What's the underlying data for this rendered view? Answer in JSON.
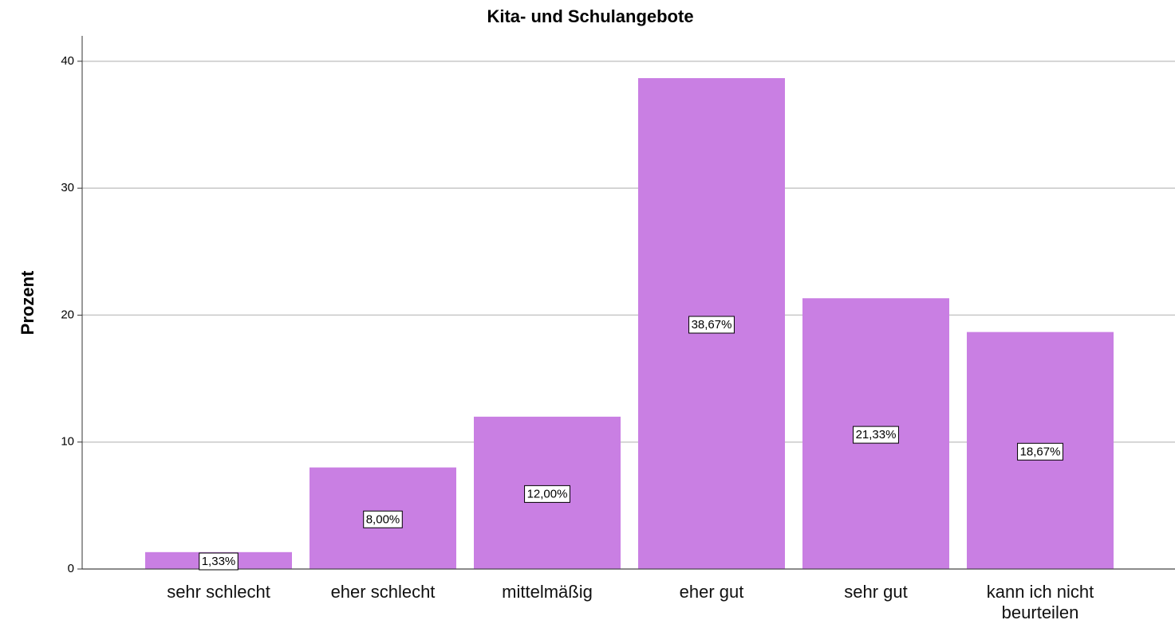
{
  "chart_data": {
    "type": "bar",
    "title": "Kita- und Schulangebote",
    "y_label": "Prozent",
    "categories": [
      "sehr schlecht",
      "eher schlecht",
      "mittelmäßig",
      "eher gut",
      "sehr gut",
      "kann ich nicht beurteilen"
    ],
    "values": [
      1.33,
      8,
      12,
      38.67,
      21.33,
      18.67
    ],
    "value_labels": [
      "1,33%",
      "8,00%",
      "12,00%",
      "38,67%",
      "21,33%",
      "18,67%"
    ],
    "color": "#c97fe3",
    "ylim": [
      0,
      42
    ],
    "yticks": [
      0,
      10,
      20,
      30,
      40
    ],
    "grid": true
  }
}
